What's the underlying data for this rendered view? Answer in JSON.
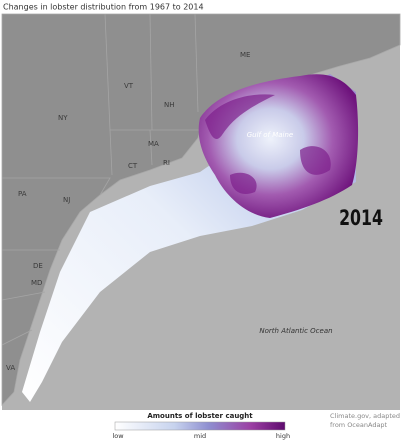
{
  "title": "Changes in lobster distribution from 1967 to 2014",
  "map": {
    "state_labels": [
      "ME",
      "VT",
      "NH",
      "NY",
      "MA",
      "CT",
      "RI",
      "PA",
      "NJ",
      "DE",
      "MD",
      "VA"
    ],
    "region_label": "Gulf of Maine",
    "ocean_label": "North Atlantic Ocean",
    "year": "2014"
  },
  "legend": {
    "title": "Amounts of lobster caught",
    "labels": [
      "low",
      "mid",
      "high"
    ]
  },
  "credit": [
    "Climate.gov, adapted",
    "from OceanAdapt"
  ]
}
